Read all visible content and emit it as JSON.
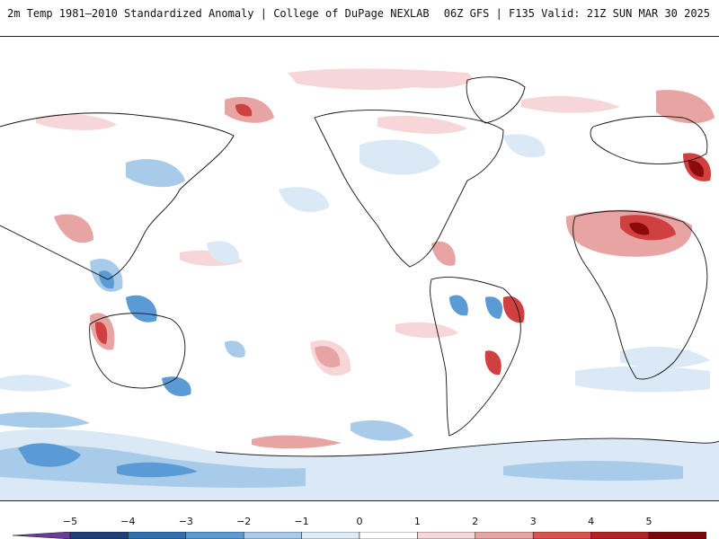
{
  "header": {
    "title_left": "2m Temp 1981–2010 Standardized Anomaly | College of DuPage NEXLAB",
    "title_right": "06Z GFS | F135 Valid: 21Z SUN MAR 30 2025"
  },
  "map": {
    "projection": "equirectangular, Pacific-centered",
    "variable": "2m temperature standardized anomaly"
  },
  "colorbar": {
    "tick_labels": [
      "−5",
      "−4",
      "−3",
      "−2",
      "−1",
      "0",
      "1",
      "2",
      "3",
      "4",
      "5"
    ],
    "levels": [
      -5,
      -4,
      -3,
      -2,
      -1,
      0,
      1,
      2,
      3,
      4,
      5
    ],
    "colors": [
      "#6a3d9a",
      "#1f3f7a",
      "#2f6fb0",
      "#5a9bd5",
      "#a9cbea",
      "#ddebf7",
      "#ffffff",
      "#f6d6d6",
      "#e8a3a3",
      "#d9534f",
      "#b22222",
      "#7a0a0a",
      "#f2c200"
    ]
  },
  "anomaly_palette": {
    "warm_light": "#f6d6d6",
    "warm_mid": "#e8a3a3",
    "warm_strong": "#d04040",
    "warm_extreme": "#8b0a0a",
    "cool_light": "#dbe8f6",
    "cool_mid": "#a9cbea",
    "cool_strong": "#5a9bd5",
    "land_outline": "#111111"
  }
}
